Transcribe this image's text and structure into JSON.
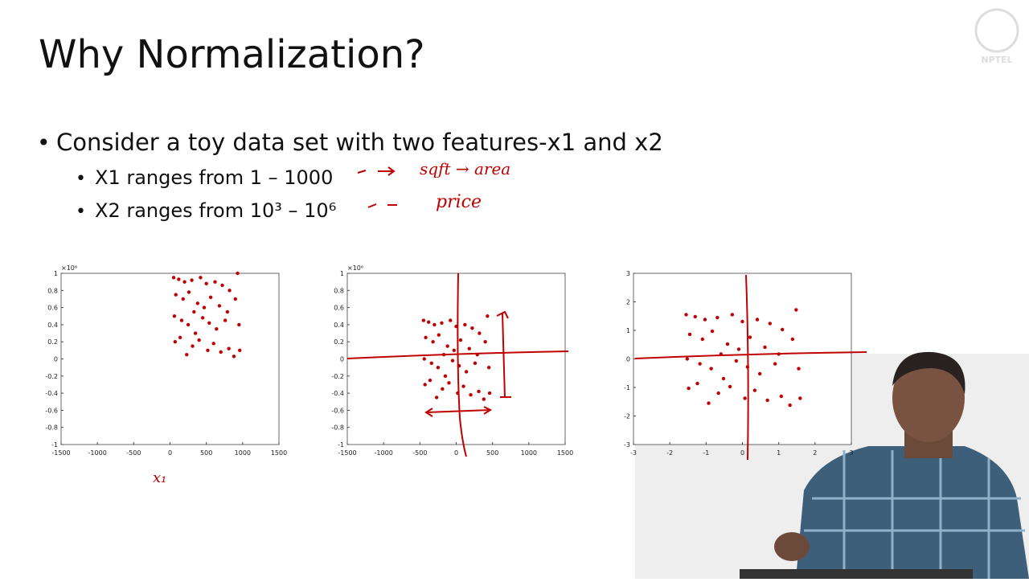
{
  "slide": {
    "title": "Why Normalization?",
    "bullets": [
      "Consider a toy data set with two features-x1 and x2",
      "X1 ranges from 1 – 1000",
      "X2 ranges from 10³ – 10⁶"
    ],
    "annotations": [
      "sqft → area",
      "price",
      "x₁"
    ],
    "logo": "NPTEL"
  },
  "chart_data": [
    {
      "type": "scatter",
      "color": "#c00000",
      "y_exponent_label": "×10⁶",
      "xlim": [
        -1500,
        1500
      ],
      "ylim": [
        -1,
        1
      ],
      "xticks": [
        -1500,
        -1000,
        -500,
        0,
        500,
        1000,
        1500
      ],
      "yticks": [
        -1,
        -0.8,
        -0.6,
        -0.4,
        -0.2,
        0,
        0.2,
        0.4,
        0.6,
        0.8,
        1
      ],
      "x": [
        50,
        120,
        200,
        300,
        420,
        500,
        620,
        720,
        820,
        930,
        80,
        180,
        260,
        380,
        470,
        560,
        680,
        790,
        900,
        60,
        160,
        250,
        330,
        450,
        540,
        640,
        760,
        950,
        70,
        140,
        230,
        310,
        400,
        520,
        600,
        700,
        810,
        880,
        960,
        350
      ],
      "values": [
        0.95,
        0.93,
        0.9,
        0.92,
        0.95,
        0.88,
        0.9,
        0.86,
        0.8,
        1.0,
        0.75,
        0.7,
        0.78,
        0.65,
        0.6,
        0.72,
        0.62,
        0.55,
        0.7,
        0.5,
        0.45,
        0.4,
        0.55,
        0.48,
        0.42,
        0.35,
        0.45,
        0.4,
        0.2,
        0.25,
        0.05,
        0.15,
        0.22,
        0.1,
        0.18,
        0.08,
        0.12,
        0.03,
        0.1,
        0.3
      ]
    },
    {
      "type": "scatter",
      "color": "#c00000",
      "y_exponent_label": "×10⁶",
      "xlim": [
        -1500,
        1500
      ],
      "ylim": [
        -1,
        1
      ],
      "xticks": [
        -1500,
        -1000,
        -500,
        0,
        500,
        1000,
        1500
      ],
      "yticks": [
        -1,
        -0.8,
        -0.6,
        -0.4,
        -0.2,
        0,
        0.2,
        0.4,
        0.6,
        0.8,
        1
      ],
      "x": [
        -450,
        -380,
        -300,
        -200,
        -80,
        0,
        120,
        220,
        320,
        430,
        -420,
        -320,
        -240,
        -120,
        -30,
        60,
        180,
        290,
        400,
        -440,
        -340,
        -250,
        -170,
        -50,
        40,
        140,
        260,
        450,
        -430,
        -360,
        -270,
        -190,
        -100,
        20,
        100,
        200,
        310,
        380,
        460,
        -150
      ],
      "values": [
        0.45,
        0.43,
        0.4,
        0.42,
        0.45,
        0.38,
        0.4,
        0.36,
        0.3,
        0.5,
        0.25,
        0.2,
        0.28,
        0.15,
        0.1,
        0.22,
        0.12,
        0.05,
        0.2,
        0,
        -0.05,
        -0.1,
        0.05,
        -0.02,
        -0.08,
        -0.15,
        -0.05,
        -0.1,
        -0.3,
        -0.25,
        -0.45,
        -0.35,
        -0.28,
        -0.4,
        -0.32,
        -0.42,
        -0.38,
        -0.47,
        -0.4,
        -0.2
      ]
    },
    {
      "type": "scatter",
      "color": "#c00000",
      "xlim": [
        -3,
        3
      ],
      "ylim": [
        -3,
        3
      ],
      "xticks": [
        -3,
        -2,
        -1,
        0,
        1,
        2,
        3
      ],
      "yticks": [
        -3,
        -2,
        -1,
        0,
        1,
        2,
        3
      ],
      "x": [
        -1.55,
        -1.3,
        -1.03,
        -0.69,
        -0.28,
        0,
        0.41,
        0.76,
        1.1,
        1.48,
        -1.45,
        -1.1,
        -0.83,
        -0.41,
        -0.1,
        0.21,
        0.62,
        1.0,
        1.38,
        -1.52,
        -1.17,
        -0.86,
        -0.59,
        -0.17,
        0.14,
        0.48,
        0.9,
        1.55,
        -1.48,
        -1.24,
        -0.93,
        -0.66,
        -0.34,
        0.07,
        0.34,
        0.69,
        1.07,
        1.31,
        1.59,
        -0.52
      ],
      "values": [
        1.55,
        1.48,
        1.38,
        1.45,
        1.55,
        1.31,
        1.38,
        1.24,
        1.03,
        1.72,
        0.86,
        0.69,
        0.97,
        0.52,
        0.34,
        0.76,
        0.41,
        0.17,
        0.69,
        0,
        -0.17,
        -0.34,
        0.17,
        -0.07,
        -0.28,
        -0.52,
        -0.17,
        -0.34,
        -1.03,
        -0.86,
        -1.55,
        -1.2,
        -0.97,
        -1.38,
        -1.1,
        -1.45,
        -1.31,
        -1.62,
        -1.38,
        -0.69
      ]
    }
  ]
}
